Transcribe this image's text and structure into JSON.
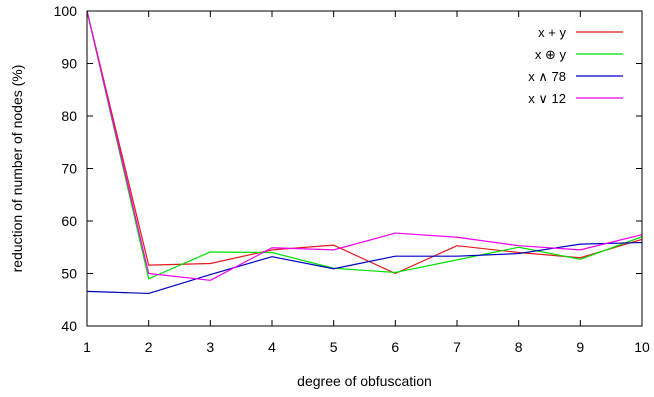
{
  "chart_data": {
    "type": "line",
    "title": "",
    "xlabel": "degree of obfuscation",
    "ylabel": "reduction of number of nodes (%)",
    "xlim": [
      1,
      10
    ],
    "ylim": [
      40,
      100
    ],
    "x": [
      1,
      2,
      3,
      4,
      5,
      6,
      7,
      8,
      9,
      10
    ],
    "x_ticks": [
      "1",
      "2",
      "3",
      "4",
      "5",
      "6",
      "7",
      "8",
      "9",
      "10"
    ],
    "y_ticks": [
      "40",
      "50",
      "60",
      "70",
      "80",
      "90",
      "100"
    ],
    "grid": false,
    "legend_position": "top-right",
    "series": [
      {
        "name": "x + y",
        "color": "#e41a1c",
        "values": [
          100,
          51.6,
          51.9,
          54.5,
          55.4,
          50.0,
          55.3,
          54.0,
          53.0,
          56.5
        ]
      },
      {
        "name": "x ⊕ y",
        "color": "#00e000",
        "values": [
          100,
          49.0,
          54.1,
          54.0,
          51.0,
          50.2,
          52.6,
          55.0,
          52.7,
          57.0
        ]
      },
      {
        "name": "x ∧ 78",
        "color": "#0000c0",
        "values": [
          46.6,
          46.2,
          49.8,
          53.2,
          50.9,
          53.3,
          53.3,
          53.8,
          55.6,
          55.9
        ]
      },
      {
        "name": "x ∨ 12",
        "color": "#ee00ee",
        "values": [
          100,
          50.0,
          48.7,
          54.9,
          54.5,
          57.7,
          56.9,
          55.3,
          54.5,
          57.4
        ]
      }
    ]
  }
}
